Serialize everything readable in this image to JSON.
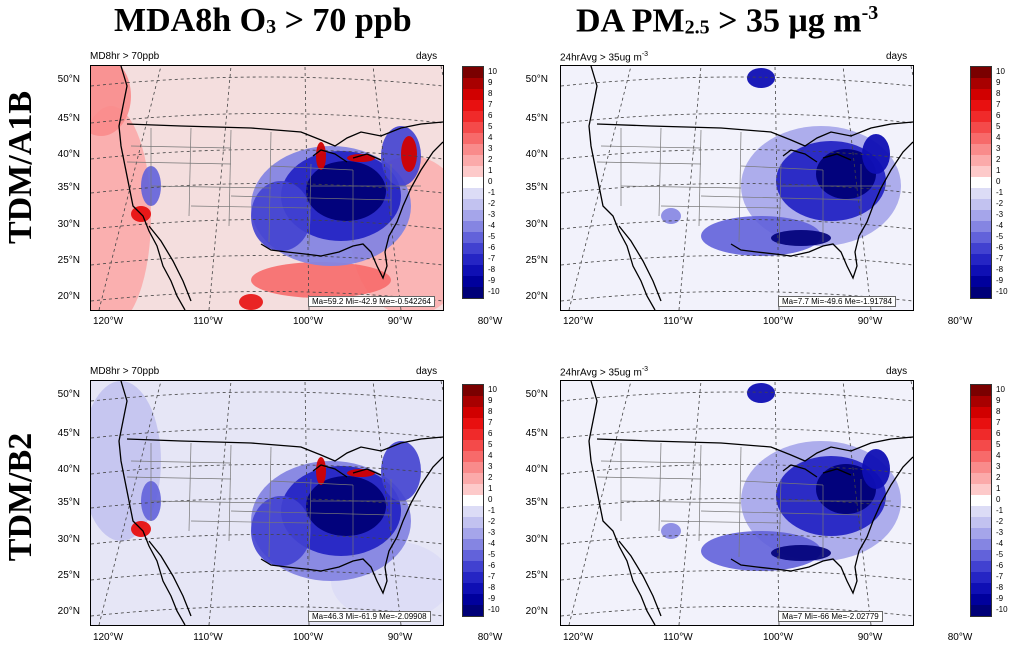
{
  "titles": {
    "col1": {
      "main": "MDA8h O",
      "sub": "3",
      "rest": " > 70 ppb"
    },
    "col2": {
      "main": "DA PM",
      "sub": "2.5",
      "rest": " > 35 μg m",
      "sup": "-3"
    },
    "row1": "TDM/A1B",
    "row2": "TDM/B2"
  },
  "panels": [
    {
      "title": "MD8hr > 70ppb",
      "units": "days",
      "stats": "Ma=59.2 Mi=-42.9 Me=-0.542264",
      "variable": "ozone",
      "scenario": "A1B"
    },
    {
      "title": "24hrAvg > 35ug m",
      "title_sup": "-3",
      "units": "days",
      "stats": "Ma=7.7 Mi=-49.6 Me=-1.91784",
      "variable": "pm25",
      "scenario": "A1B"
    },
    {
      "title": "MD8hr > 70ppb",
      "units": "days",
      "stats": "Ma=46.3 Mi=-61.9 Me=-2.09908",
      "variable": "ozone",
      "scenario": "B2"
    },
    {
      "title": "24hrAvg > 35ug m",
      "title_sup": "-3",
      "units": "days",
      "stats": "Ma=7 Mi=-66 Me=-2.02779",
      "variable": "pm25",
      "scenario": "B2"
    }
  ],
  "lat_labels": [
    "50°N",
    "45°N",
    "40°N",
    "35°N",
    "30°N",
    "25°N",
    "20°N"
  ],
  "lon_labels": [
    "120°W",
    "110°W",
    "100°W",
    "90°W",
    "80°W"
  ],
  "colorbar": {
    "labels": [
      "10",
      "9",
      "8",
      "7",
      "6",
      "5",
      "4",
      "3",
      "2",
      "1",
      "0",
      "-1",
      "-2",
      "-3",
      "-4",
      "-5",
      "-6",
      "-7",
      "-8",
      "-9",
      "-10"
    ],
    "colors": [
      "#7a0000",
      "#a80000",
      "#d10000",
      "#e81010",
      "#f02a2a",
      "#f44a4a",
      "#f76a6a",
      "#f98b8b",
      "#fbaaaa",
      "#fdcaca",
      "#ffffff",
      "#dcdcf6",
      "#c2c2f0",
      "#a5a5ea",
      "#8585e2",
      "#6262da",
      "#4141d0",
      "#2525c4",
      "#0f0fb4",
      "#00009c",
      "#000078"
    ]
  }
}
